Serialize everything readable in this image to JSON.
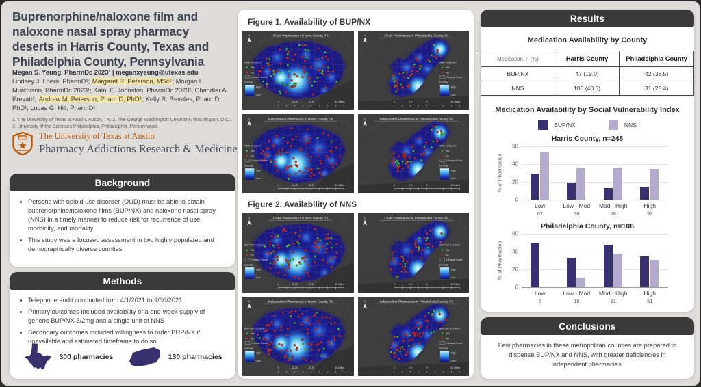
{
  "colors": {
    "bup_purple": "#38306F",
    "nns_purple": "#B3AACE",
    "header_bar": "#3A3A3A",
    "highlight_yellow": "#F3E5A1",
    "ut_orange": "#BF5700",
    "map_bg": "#3E3E3E",
    "density_high": "#8FE8F7",
    "density_low": "#0C0C6E",
    "dot_yes": "#3FCB3B",
    "dot_no": "#D92B2B"
  },
  "left": {
    "title": "Buprenorphine/naloxone film and naloxone nasal spray pharmacy deserts in Harris County, Texas and Philadelphia County, Pennsylvania",
    "lead_author_line": "Megan S. Yeung, PharmDc 2023¹ | meganxyeung@utexas.edu",
    "authors_segments": [
      {
        "text": "Lindsey J. Loera, PharmD¹; ",
        "highlight": false
      },
      {
        "text": "Margaret R. Peterson, MSc²",
        "highlight": true
      },
      {
        "text": "; Morgan L. Murchison, PharmDc 2023¹; Kami E. Johnston, PharmDc 2023¹; Chandler A. Prevatt¹; ",
        "highlight": false
      },
      {
        "text": "Andrew M. Peterson, PharmD, PhD³",
        "highlight": true
      },
      {
        "text": "; Kelly R. Reveles, PharmD, PhD¹; Lucas G. Hill, PharmD¹",
        "highlight": false
      }
    ],
    "affiliations": "1. The University of Texas at Austin, Austin, TX; 2. The George Washington University, Washington, D.C.; 3. University of the Sciences Philadelphia, Philadelphia, Pennsylvania",
    "logo_line1": "The University of Texas at Austin",
    "logo_line2": "Pharmacy Addictions Research & Medicine",
    "background": {
      "header": "Background",
      "bullets": [
        "Persons with opioid use disorder (OUD) must be able to obtain buprenorphine/naloxone films (BUP/NX) and naloxone nasal spray (NNS) in a timely manner to reduce risk for recurrence of use, morbidity, and mortality",
        "This study was a focused assessment in two highly populated and demographically diverse counties"
      ]
    },
    "methods": {
      "header": "Methods",
      "bullets": [
        "Telephone audit conducted from 4/1/2021 to 9/30/2021",
        "Primary outcomes included availability of a one-week supply of generic BUP/NX 8/2mg and a single unit of NNS",
        "Secondary outcomes included willingness to order BUP/NX if unavailable and estimated timeframe to do so"
      ],
      "texas_label": "300 pharmacies",
      "philly_label": "130 pharmacies"
    }
  },
  "center": {
    "figure1_title": "Figure 1. Availability of BUP/NX",
    "figure2_title": "Figure 2. Availability of NNS",
    "map_legend": {
      "yes": "Yes",
      "no": "No",
      "census": "Census Tracts",
      "density": "Density",
      "high": "High",
      "low": "Low"
    },
    "maps": [
      {
        "title": "Chain Pharmacies in Harris County, TX",
        "legend_title": "NNS in Stock?",
        "legend_side": "left",
        "shape": "harris",
        "scale": [
          "0",
          "11.25",
          "22.5",
          "45 Miles"
        ],
        "dots": 88,
        "green_ratio": 0.48
      },
      {
        "title": "Chain Pharmacies in Philadelphia County, PA",
        "legend_title": "NNS in Stock?",
        "legend_side": "right",
        "shape": "philly",
        "scale": [
          "0",
          "2.5",
          "5",
          "10 Miles"
        ],
        "dots": 44,
        "green_ratio": 0.38
      },
      {
        "title": "Independent Pharmacies in Harris County, TX",
        "legend_title": "NNS in Stock?",
        "legend_side": "left",
        "shape": "harris",
        "scale": [
          "0",
          "11.25",
          "22.5",
          "45 Miles"
        ],
        "dots": 86,
        "green_ratio": 0.07
      },
      {
        "title": "Independent Pharmacies in Philadelphia County, PA",
        "legend_title": "NNS in Stock?",
        "legend_side": "right",
        "shape": "philly",
        "scale": [
          "0",
          "2.5",
          "5",
          "10 Miles"
        ],
        "dots": 56,
        "green_ratio": 0.28
      },
      {
        "title": "Chain Pharmacies in Harris County, TX",
        "legend_title": "BUP/NX in Stock?",
        "legend_side": "left",
        "shape": "harris",
        "scale": [
          "0",
          "11.25",
          "22.5",
          "45 Miles"
        ],
        "dots": 94,
        "green_ratio": 0.24
      },
      {
        "title": "Chain Pharmacies in Philadelphia County, PA",
        "legend_title": "BUP/NX in Stock?",
        "legend_side": "right",
        "shape": "philly",
        "scale": [
          "0",
          "2.5",
          "5",
          "10 Miles"
        ],
        "dots": 48,
        "green_ratio": 0.3
      },
      {
        "title": "Independent Pharmacies in Harris County, TX",
        "legend_title": "BUP/NX in Stock?",
        "legend_side": "left",
        "shape": "harris",
        "scale": [
          "0",
          "11.25",
          "22.5",
          "45 Miles"
        ],
        "dots": 92,
        "green_ratio": 0.12
      },
      {
        "title": "Independent Pharmacies in Philadelphia County, PA",
        "legend_title": "BUP/NX in Stock?",
        "legend_side": "right",
        "shape": "philly",
        "scale": [
          "0",
          "2.5",
          "5",
          "10 Miles"
        ],
        "dots": 60,
        "green_ratio": 0.32
      }
    ]
  },
  "results": {
    "header": "Results",
    "table_title": "Medication Availability by County",
    "table": {
      "columns": [
        "Medication, n (%)",
        "Harris County",
        "Philadelphia County"
      ],
      "rows": [
        [
          "BUP/NX",
          "47 (19.0)",
          "42 (38.5)"
        ],
        [
          "NNS",
          "100 (40.3)",
          "31 (28.4)"
        ]
      ]
    },
    "svi_title": "Medication Availability by Social Vulnerability Index",
    "legend": [
      "BUP/NX",
      "NNS"
    ]
  },
  "chart_data": [
    {
      "type": "bar",
      "title": "Harris County, n=248",
      "categories": [
        "Low",
        "Low - Mod",
        "Mod - High",
        "High"
      ],
      "category_counts": [
        62,
        36,
        58,
        92
      ],
      "series": [
        {
          "name": "BUP/NX",
          "values": [
            29,
            19,
            13,
            15
          ]
        },
        {
          "name": "NNS",
          "values": [
            53,
            36,
            36,
            35
          ]
        }
      ],
      "ylabel": "% of Pharmacies",
      "ylim": [
        0,
        60
      ],
      "yticks": [
        0,
        20,
        40,
        60
      ],
      "legend_position": "top"
    },
    {
      "type": "bar",
      "title": "Philadelphia County, n=106",
      "categories": [
        "Low",
        "Low - Mod",
        "Mod - High",
        "High"
      ],
      "category_counts": [
        6,
        18,
        31,
        51
      ],
      "series": [
        {
          "name": "BUP/NX",
          "values": [
            50,
            33,
            48,
            35
          ]
        },
        {
          "name": "NNS",
          "values": [
            0,
            11,
            38,
            31
          ]
        }
      ],
      "ylabel": "% of Pharmacies",
      "ylim": [
        0,
        60
      ],
      "yticks": [
        0,
        20,
        40,
        60
      ],
      "legend_position": "top"
    }
  ],
  "conclusions": {
    "header": "Conclusions",
    "text": "Few pharmacies in these metropolitan counties are prepared to dispense BUP/NX and NNS, with greater deficiencies in independent pharmacies."
  }
}
